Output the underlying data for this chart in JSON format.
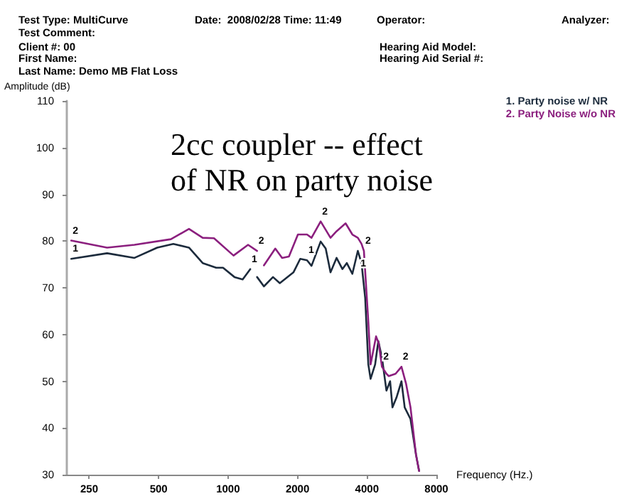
{
  "chart_data": {
    "type": "line",
    "title": "2cc coupler -- effect of NR on party noise",
    "xlabel": "Frequency (Hz.)",
    "ylabel": "Amplitude (dB)",
    "log": "x",
    "xlim": [
      200,
      8000
    ],
    "xticks": [
      250,
      500,
      1000,
      2000,
      4000,
      8000
    ],
    "ylim": [
      30,
      110
    ],
    "yticks": [
      30,
      40,
      50,
      60,
      70,
      80,
      90,
      100,
      110
    ],
    "grid": false,
    "legend": "top right",
    "marker": "none",
    "line_style": "solid",
    "annotations": [
      "Test Type: MultiCurve",
      "Test Comment:",
      "Client #: 00",
      "First Name:",
      "Last Name: Demo MB Flat Loss",
      "Date:  2008/02/28 Time: 11:49",
      "Operator:",
      "Analyzer:",
      "Hearing Aid Model:",
      "Hearing Aid Serial #:",
      {
        "text": "2",
        "x": 209,
        "y": 80.1
      },
      {
        "text": "2",
        "x": 1336,
        "y": 77.9
      },
      {
        "text": "2",
        "x": 2520,
        "y": 84.2
      },
      {
        "text": "2",
        "x": 3880,
        "y": 77.9
      },
      {
        "text": "2",
        "x": 4645,
        "y": 53.1
      },
      {
        "text": "2",
        "x": 5645,
        "y": 53.1
      },
      {
        "text": "1",
        "x": 209,
        "y": 76.2
      },
      {
        "text": "1",
        "x": 1248,
        "y": 74
      },
      {
        "text": "1",
        "x": 2199,
        "y": 75.9
      },
      {
        "text": "1",
        "x": 3700,
        "y": 73
      }
    ],
    "series": [
      {
        "name": "1. Party noise w/ NR",
        "color": "#1c2b3c",
        "x": [
          209,
          299,
          393,
          493,
          579,
          677,
          776,
          888,
          951,
          1066,
          1157,
          1248,
          null,
          1336,
          1430,
          1566,
          1676,
          1920,
          2055,
          2199,
          2300,
          2520,
          2650,
          2780,
          2953,
          3130,
          3270,
          3458,
          3652,
          3788,
          3930,
          4055,
          4148,
          4340,
          4480,
          4645,
          4858,
          5040,
          5160,
          5370,
          5645,
          5830,
          6178,
          6525,
          6730
        ],
        "values": [
          76.2,
          77.4,
          76.4,
          78.6,
          79.4,
          78.6,
          75.3,
          74.3,
          74.3,
          72.3,
          71.8,
          74,
          null,
          72.3,
          70.3,
          72.3,
          71,
          73.3,
          76.2,
          75.9,
          74.7,
          79.9,
          78.4,
          73.3,
          76.4,
          74,
          75.3,
          73,
          77.9,
          75.3,
          67.8,
          53.6,
          50.5,
          53.6,
          58.6,
          55.1,
          48,
          50,
          44.4,
          46.5,
          50,
          44.4,
          41.9,
          34.3,
          30.8
        ]
      },
      {
        "name": "2. Party Noise w/o NR",
        "color": "#8b1f7e",
        "x": [
          209,
          299,
          393,
          565,
          677,
          776,
          869,
          1056,
          1221,
          1336,
          null,
          1430,
          1602,
          1715,
          1836,
          2008,
          2199,
          2300,
          2520,
          2780,
          2953,
          3232,
          3458,
          3652,
          3788,
          3880,
          4055,
          4148,
          4380,
          4500,
          4645,
          4858,
          4972,
          5322,
          5645,
          5908,
          6178,
          6525,
          6730
        ],
        "values": [
          80.1,
          78.6,
          79.2,
          80.4,
          82.6,
          80.7,
          80.6,
          76.9,
          79.2,
          77.9,
          null,
          74.8,
          78.4,
          76.4,
          76.7,
          81.4,
          81.4,
          80.7,
          84.2,
          80.7,
          82.1,
          83.8,
          81.4,
          80.7,
          79.4,
          77.9,
          62.7,
          53.6,
          59.6,
          58.1,
          53.1,
          51.6,
          51.1,
          51.6,
          53.1,
          49.5,
          44.4,
          34.3,
          30.8
        ]
      }
    ]
  }
}
